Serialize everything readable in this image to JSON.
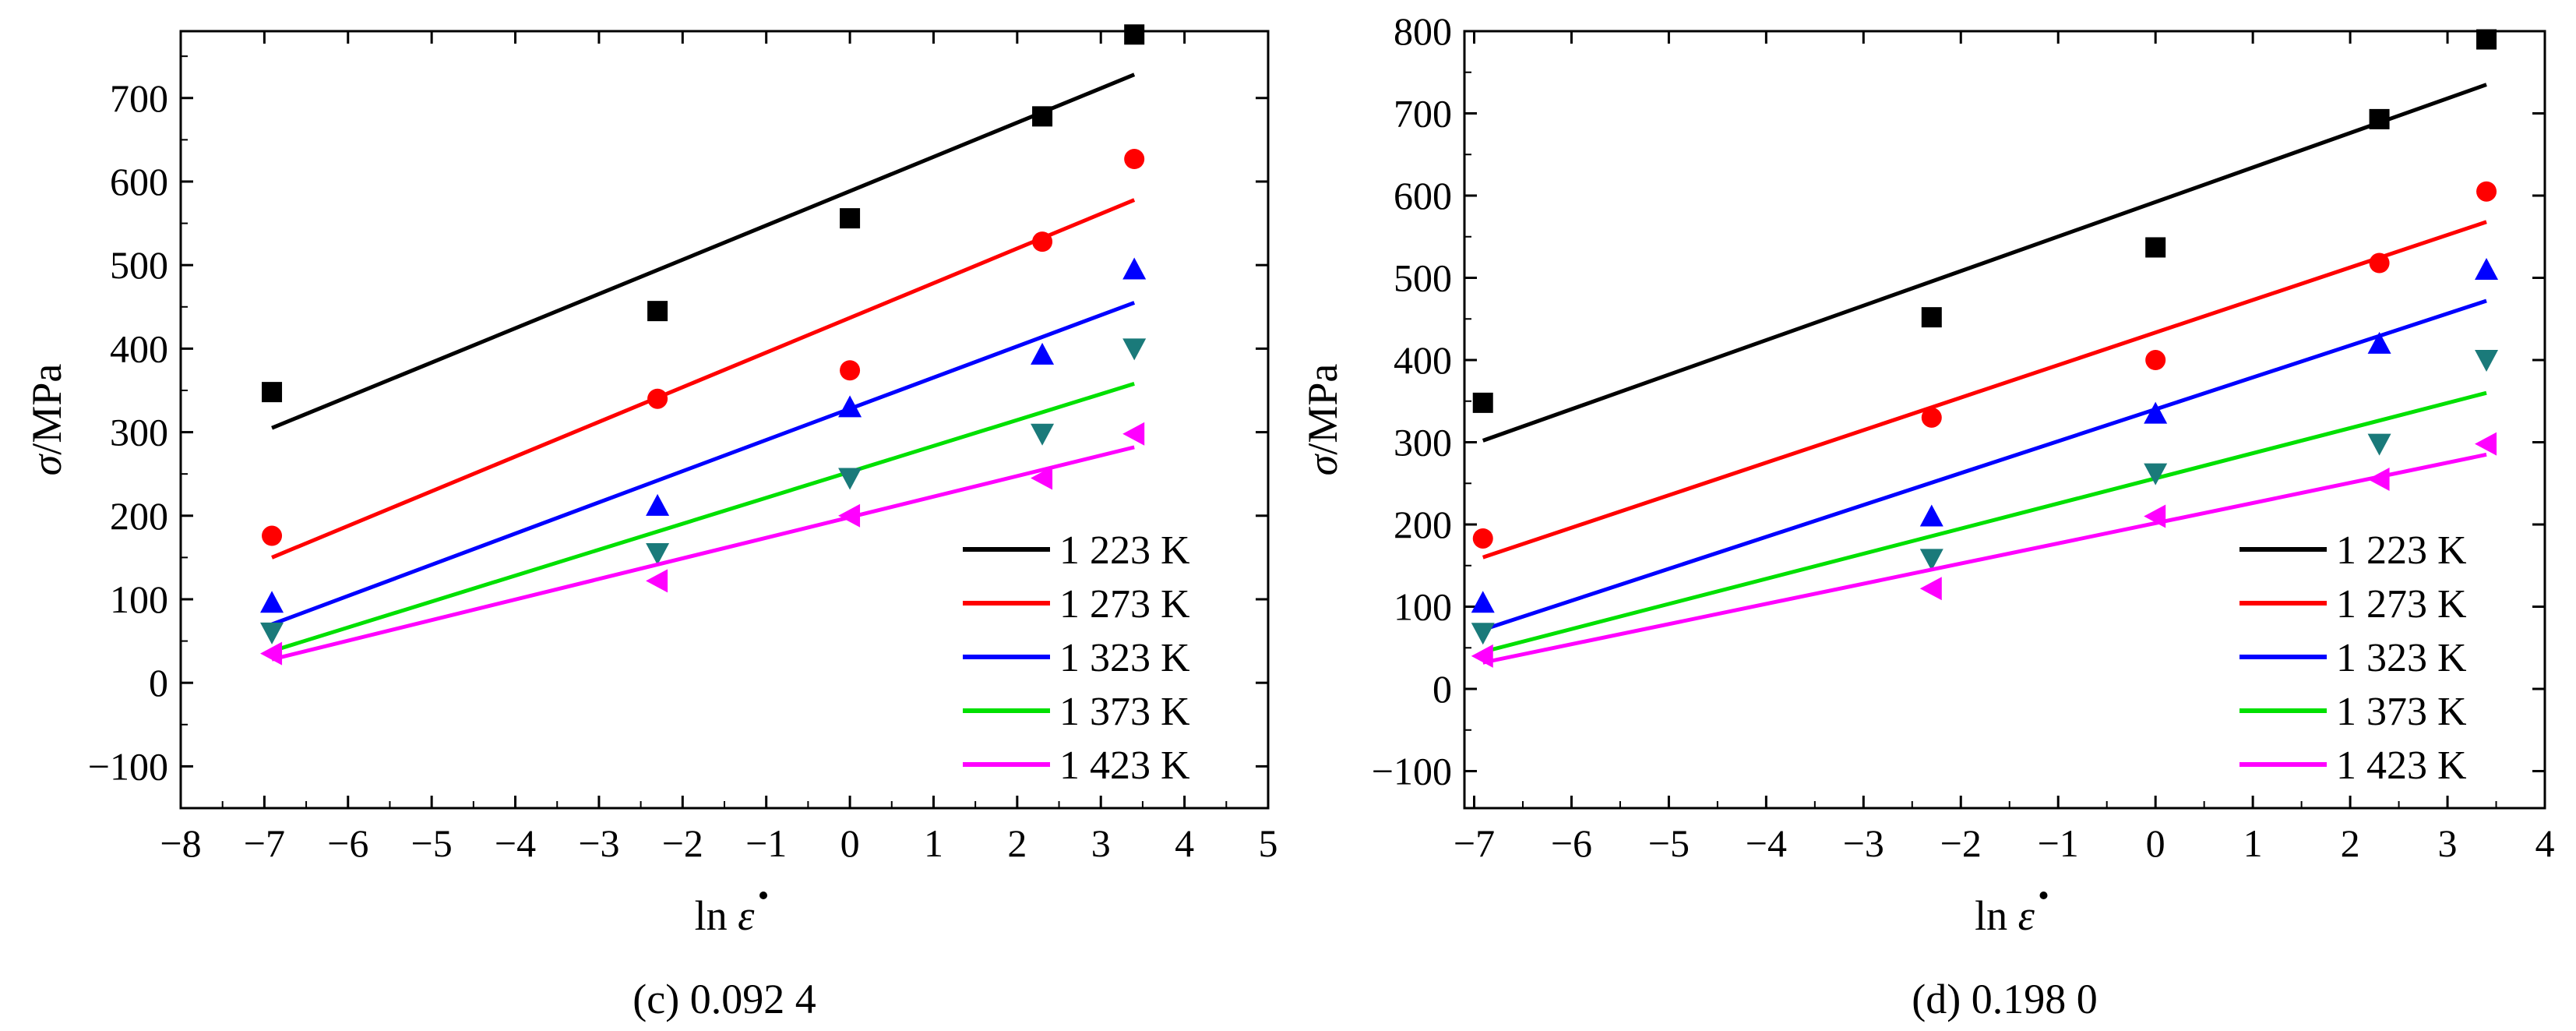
{
  "chart_data": [
    {
      "type": "scatter",
      "caption": "(c) 0.092 4",
      "xlabel_ln": "ln",
      "xlabel_sym": "ε",
      "ylabel_sym": "σ",
      "ylabel_unit": "/MPa",
      "xlim": [
        -8,
        5
      ],
      "ylim": [
        -150,
        780
      ],
      "xticks": [
        -8,
        -7,
        -6,
        -5,
        -4,
        -3,
        -2,
        -1,
        0,
        1,
        2,
        3,
        4,
        5
      ],
      "xtick_labels": [
        "−8",
        "−7",
        "−6",
        "−5",
        "−4",
        "−3",
        "−2",
        "−1",
        "0",
        "1",
        "2",
        "3",
        "4",
        "5"
      ],
      "yticks": [
        -100,
        0,
        100,
        200,
        300,
        400,
        500,
        600,
        700
      ],
      "ytick_labels": [
        "−100",
        "0",
        "100",
        "200",
        "300",
        "400",
        "500",
        "600",
        "700"
      ],
      "legend_position": "bottom-right",
      "grid": false,
      "series": [
        {
          "name": "1 223 K",
          "color": "#000000",
          "marker": "square",
          "x": [
            -6.91,
            -2.3,
            0,
            2.3,
            3.4
          ],
          "y": [
            348,
            445,
            556,
            678,
            776
          ],
          "fit": {
            "x": [
              -6.91,
              3.4
            ],
            "y": [
              305,
              728
            ]
          }
        },
        {
          "name": "1 273 K",
          "color": "#ff0000",
          "marker": "circle",
          "x": [
            -6.91,
            -2.3,
            0,
            2.3,
            3.4
          ],
          "y": [
            176,
            340,
            374,
            528,
            627
          ],
          "fit": {
            "x": [
              -6.91,
              3.4
            ],
            "y": [
              150,
              578
            ]
          }
        },
        {
          "name": "1 323 K",
          "color": "#0000ff",
          "marker": "triangle-up",
          "x": [
            -6.91,
            -2.3,
            0,
            2.3,
            3.4
          ],
          "y": [
            96,
            212,
            330,
            393,
            495
          ],
          "fit": {
            "x": [
              -6.91,
              3.4
            ],
            "y": [
              70,
              455
            ]
          }
        },
        {
          "name": "1 373 K",
          "color": "#00e000",
          "marker": "triangle-down",
          "x": [
            -6.91,
            -2.3,
            0,
            2.3,
            3.4
          ],
          "y": [
            60,
            155,
            245,
            298,
            400
          ],
          "fit": {
            "x": [
              -6.91,
              3.4
            ],
            "y": [
              38,
              358
            ]
          }
        },
        {
          "name": "1 423 K",
          "color": "#ff00ff",
          "marker": "triangle-left",
          "x": [
            -6.91,
            -2.3,
            0,
            2.3,
            3.4
          ],
          "y": [
            35,
            122,
            200,
            245,
            298
          ],
          "fit": {
            "x": [
              -6.91,
              3.4
            ],
            "y": [
              28,
              282
            ]
          }
        }
      ]
    },
    {
      "type": "scatter",
      "caption": "(d) 0.198 0",
      "xlabel_ln": "ln",
      "xlabel_sym": "ε",
      "ylabel_sym": "σ",
      "ylabel_unit": "/MPa",
      "xlim": [
        -7.1,
        4
      ],
      "ylim": [
        -145,
        800
      ],
      "xticks": [
        -7,
        -6,
        -5,
        -4,
        -3,
        -2,
        -1,
        0,
        1,
        2,
        3,
        4
      ],
      "xtick_labels": [
        "−7",
        "−6",
        "−5",
        "−4",
        "−3",
        "−2",
        "−1",
        "0",
        "1",
        "2",
        "3",
        "4"
      ],
      "yticks": [
        -100,
        0,
        100,
        200,
        300,
        400,
        500,
        600,
        700,
        800
      ],
      "ytick_labels": [
        "−100",
        "0",
        "100",
        "200",
        "300",
        "400",
        "500",
        "600",
        "700",
        "800"
      ],
      "legend_position": "bottom-right",
      "grid": false,
      "series": [
        {
          "name": "1 223 K",
          "color": "#000000",
          "marker": "square",
          "x": [
            -6.91,
            -2.3,
            0,
            2.3,
            3.4
          ],
          "y": [
            348,
            452,
            537,
            693,
            790
          ],
          "fit": {
            "x": [
              -6.91,
              3.4
            ],
            "y": [
              302,
              735
            ]
          }
        },
        {
          "name": "1 273 K",
          "color": "#ff0000",
          "marker": "circle",
          "x": [
            -6.91,
            -2.3,
            0,
            2.3,
            3.4
          ],
          "y": [
            183,
            330,
            400,
            518,
            605
          ],
          "fit": {
            "x": [
              -6.91,
              3.4
            ],
            "y": [
              160,
              568
            ]
          }
        },
        {
          "name": "1 323 K",
          "color": "#0000ff",
          "marker": "triangle-up",
          "x": [
            -6.91,
            -2.3,
            0,
            2.3,
            3.4
          ],
          "y": [
            105,
            210,
            335,
            420,
            510
          ],
          "fit": {
            "x": [
              -6.91,
              3.4
            ],
            "y": [
              72,
              472
            ]
          }
        },
        {
          "name": "1 373 K",
          "color": "#00e000",
          "marker": "triangle-down",
          "x": [
            -6.91,
            -2.3,
            0,
            2.3,
            3.4
          ],
          "y": [
            68,
            158,
            262,
            298,
            400
          ],
          "fit": {
            "x": [
              -6.91,
              3.4
            ],
            "y": [
              45,
              360
            ]
          }
        },
        {
          "name": "1 423 K",
          "color": "#ff00ff",
          "marker": "triangle-left",
          "x": [
            -6.91,
            -2.3,
            0,
            2.3,
            3.4
          ],
          "y": [
            40,
            122,
            210,
            255,
            298
          ],
          "fit": {
            "x": [
              -6.91,
              3.4
            ],
            "y": [
              32,
              285
            ]
          }
        }
      ]
    }
  ]
}
